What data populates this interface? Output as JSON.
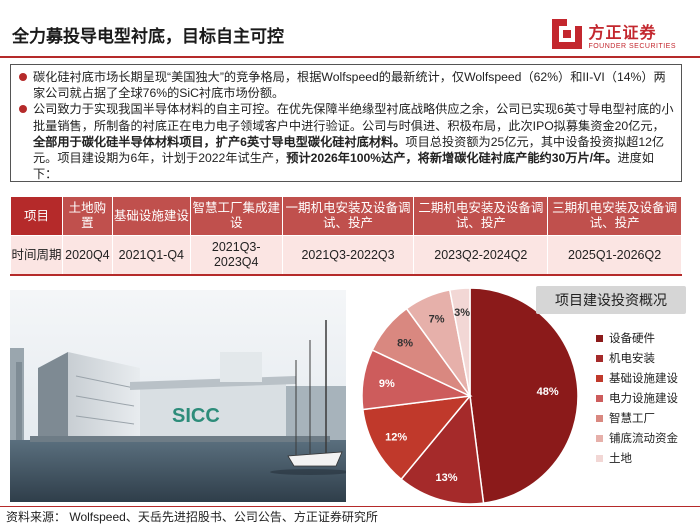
{
  "header": {
    "title": "全力募投导电型衬底，目标自主可控",
    "logo_cn": "方正证券",
    "logo_en": "FOUNDER SECURITIES"
  },
  "bullets": [
    {
      "parts": [
        {
          "text": "碳化硅衬底市场长期呈现“美国独大”的竞争格局，根据Wolfspeed的最新统计，仅Wolfspeed（62%）和II-VI（14%）两家公司就占据了全球76%的SiC衬底市场份额。",
          "bold": false
        }
      ]
    },
    {
      "parts": [
        {
          "text": "公司致力于实现我国半导体材料的自主可控。在优先保障半绝缘型衬底战略供应之余，公司已实现6英寸导电型衬底的小批量销售，所制备的衬底正在电力电子领域客户中进行验证。公司与时俱进、积极布局，此次IPO拟募集资金20亿元，",
          "bold": false
        },
        {
          "text": "全部用于碳化硅半导体材料项目，扩产6英寸导电型碳化硅衬底材料。",
          "bold": true
        },
        {
          "text": "项目总投资额为25亿元，其中设备投资拟超12亿元。项目建设期为6年，计划于2022年试生产，",
          "bold": false
        },
        {
          "text": "预计2026年100%达产，将新增碳化硅衬底产能约30万片/年。",
          "bold": true
        },
        {
          "text": "进度如下：",
          "bold": false
        }
      ]
    }
  ],
  "timeline": {
    "row_header": "项目",
    "row_label": "时间周期",
    "columns": [
      {
        "name": "土地购置",
        "period": "2020Q4"
      },
      {
        "name": "基础设施建设",
        "period": "2021Q1-Q4"
      },
      {
        "name": "智慧工厂集成建设",
        "period": "2021Q3-2023Q4"
      },
      {
        "name": "一期机电安装及设备调试、投产",
        "period": "2021Q3-2022Q3"
      },
      {
        "name": "二期机电安装及设备调试、投产",
        "period": "2023Q2-2024Q2"
      },
      {
        "name": "三期机电安装及设备调试、投产",
        "period": "2025Q1-2026Q2"
      }
    ]
  },
  "photo": {
    "building_sign": "SICC"
  },
  "chart_data": {
    "type": "pie",
    "title": "项目建设投资概况",
    "slices": [
      {
        "label": "设备硬件",
        "value": 48,
        "color": "#8b1a1a"
      },
      {
        "label": "机电安装",
        "value": 13,
        "color": "#a52a2a"
      },
      {
        "label": "基础设施建设",
        "value": 12,
        "color": "#c0392b"
      },
      {
        "label": "电力设施建设",
        "value": 9,
        "color": "#cd5c5c"
      },
      {
        "label": "智慧工厂",
        "value": 8,
        "color": "#d98880"
      },
      {
        "label": "铺底流动资金",
        "value": 7,
        "color": "#e6b0aa"
      },
      {
        "label": "土地",
        "value": 3,
        "color": "#f2d7d5"
      }
    ],
    "data_labels": [
      "48%",
      "13%",
      "12%",
      "9%",
      "8%",
      "7%",
      "3%"
    ],
    "legend_position": "right"
  },
  "footer": {
    "source": "资料来源： Wolfspeed、天岳先进招股书、公司公告、方正证券研究所"
  }
}
